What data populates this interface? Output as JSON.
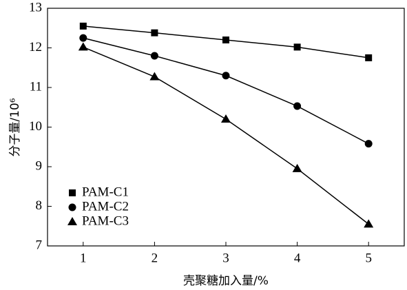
{
  "chart_data": {
    "type": "line",
    "xlabel": "壳聚糖加入量/%",
    "ylabel": "分子量/10⁶",
    "x": [
      1,
      2,
      3,
      4,
      5
    ],
    "series": [
      {
        "name": "PAM-C1",
        "color": "#000000",
        "marker": "square",
        "values": [
          12.55,
          12.38,
          12.2,
          12.02,
          11.75
        ]
      },
      {
        "name": "PAM-C2",
        "color": "#000000",
        "marker": "circle",
        "values": [
          12.25,
          11.8,
          11.3,
          10.53,
          9.58
        ]
      },
      {
        "name": "PAM-C3",
        "color": "#000000",
        "marker": "triangle",
        "values": [
          12.02,
          11.27,
          10.2,
          8.95,
          7.55
        ]
      }
    ],
    "xlim": [
      0.5,
      5.5
    ],
    "xticks": [
      1,
      2,
      3,
      4,
      5
    ],
    "ylim": [
      7,
      13
    ],
    "yticks": [
      7,
      8,
      9,
      10,
      11,
      12,
      13
    ],
    "grid": false,
    "legend": "lower-left"
  }
}
